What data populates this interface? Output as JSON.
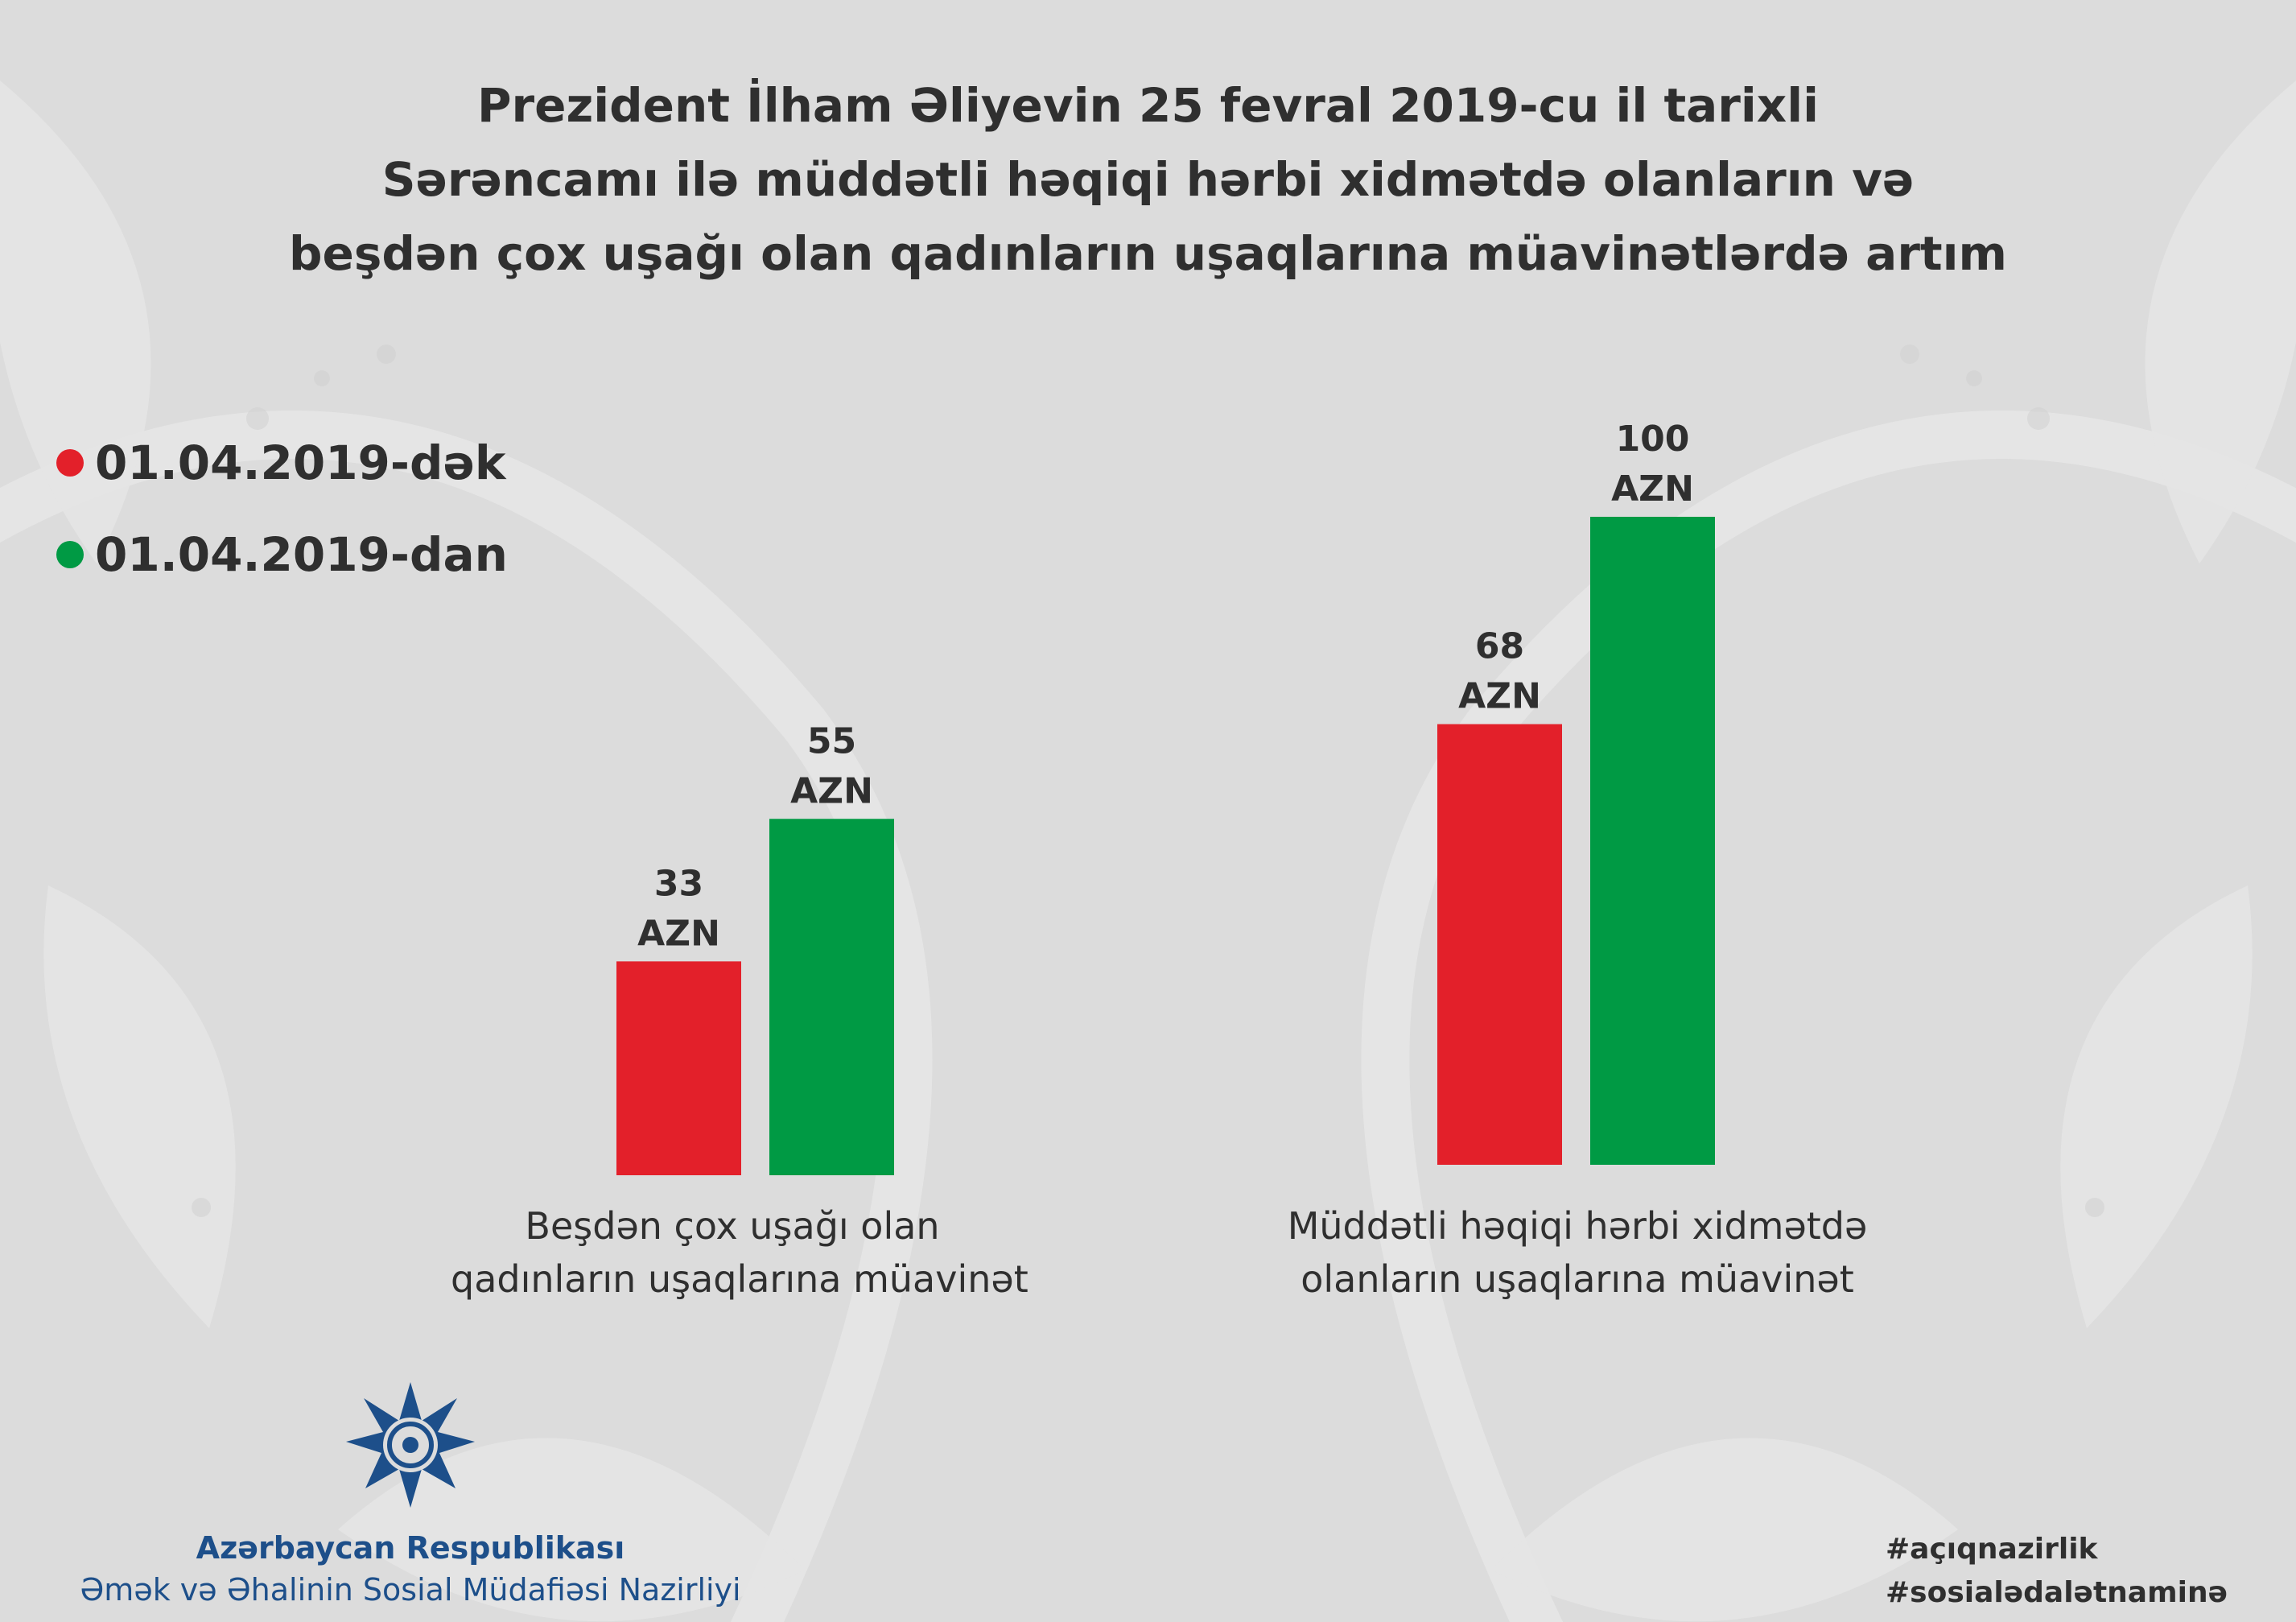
{
  "title": {
    "line1": "Prezident İlham Əliyevin 25 fevral 2019-cu il tarixli",
    "line2": "Sərəncamı ilə müddətli həqiqi hərbi xidmətdə olanların və",
    "line3": "beşdən çox uşağı olan qadınların uşaqlarına müavinətlərdə artım"
  },
  "legend": {
    "before": "01.04.2019-dək",
    "after": "01.04.2019-dan"
  },
  "colors": {
    "before": "#e3202a",
    "after": "#009a44",
    "background": "#dcdcdc",
    "ministry": "#1d4f8a"
  },
  "chart_data": {
    "type": "bar",
    "title": "Prezident İlham Əliyevin 25 fevral 2019-cu il tarixli Sərəncamı ilə müddətli həqiqi hərbi xidmətdə olanların və beşdən çox uşağı olan qadınların uşaqlarına müavinətlərdə artım",
    "unit": "AZN",
    "categories": [
      [
        "Beşdən çox uşağı olan",
        "qadınların uşaqlarına müavinət"
      ],
      [
        "Müddətli həqiqi hərbi xidmətdə",
        "olanların uşaqlarına müavinət"
      ]
    ],
    "series": [
      {
        "name": "01.04.2019-dək",
        "values": [
          33,
          68
        ]
      },
      {
        "name": "01.04.2019-dan",
        "values": [
          55,
          100
        ]
      }
    ],
    "legend_position": "top-left",
    "grid": false,
    "axes_visible": false
  },
  "ministry": {
    "line1": "Azərbaycan Respublikası",
    "line2": "Əmək və Əhalinin Sosial Müdafiəsi Nazirliyi",
    "logo": "ministry-star-logo"
  },
  "hashtags": [
    "#açıqnazirlik",
    "#sosialədalətnaminə"
  ]
}
